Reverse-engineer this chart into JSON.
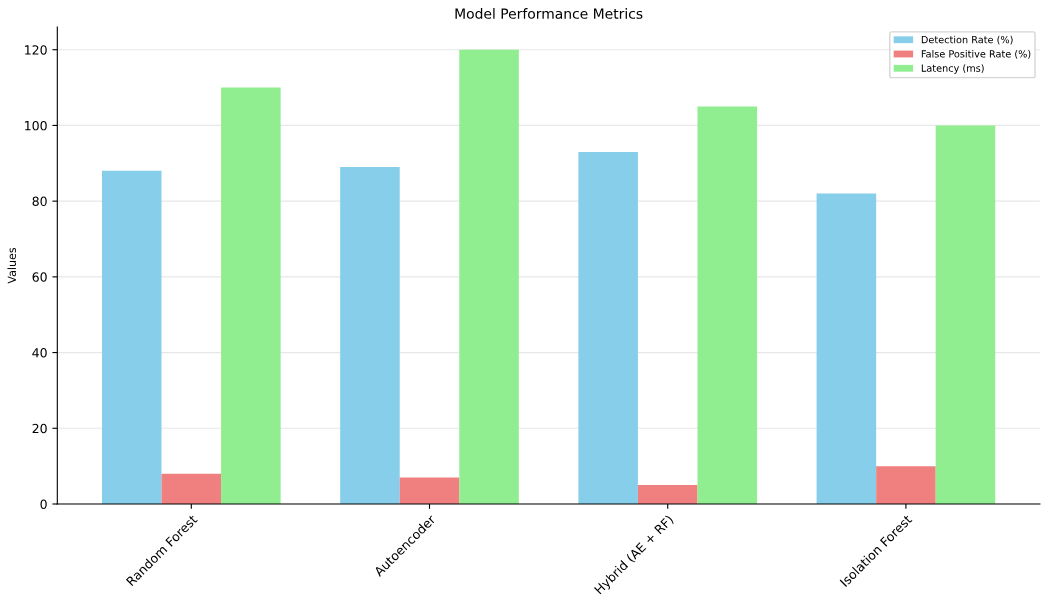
{
  "chart_data": {
    "type": "bar",
    "title": "Model Performance Metrics",
    "ylabel": "Values",
    "categories": [
      "Random Forest",
      "Autoencoder",
      "Hybrid (AE + RF)",
      "Isolation Forest"
    ],
    "series": [
      {
        "name": "Detection Rate (%)",
        "color": "#87ceeb",
        "values": [
          88,
          89,
          93,
          82
        ]
      },
      {
        "name": "False Positive Rate (%)",
        "color": "#f08080",
        "values": [
          8,
          7,
          5,
          10
        ]
      },
      {
        "name": "Latency (ms)",
        "color": "#90ee90",
        "values": [
          110,
          120,
          105,
          100
        ]
      }
    ],
    "ylim": [
      0,
      126
    ],
    "yticks": [
      0,
      20,
      40,
      60,
      80,
      100,
      120
    ],
    "grid": "y",
    "legend": "top right"
  }
}
